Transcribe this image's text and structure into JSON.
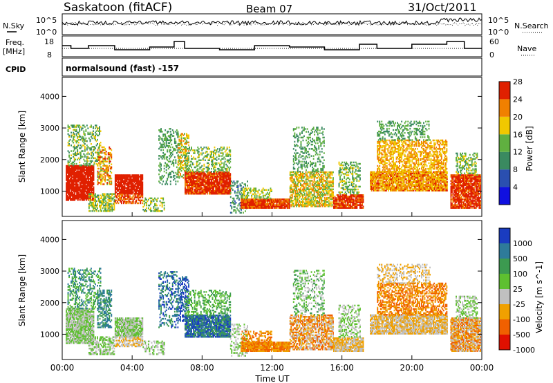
{
  "header": {
    "station": "Saskatoon (fitACF)",
    "beam": "Beam 07",
    "date": "31/Oct/2011"
  },
  "strip_panels": {
    "left_labels": [
      "N.Sky",
      "Freq.",
      "[MHz]",
      "CPID"
    ],
    "right_labels": [
      "N.Search",
      "Nave"
    ],
    "noise_ticks_left": [
      "10^5",
      "10^0"
    ],
    "noise_ticks_right": [
      "10^5",
      "10^0"
    ],
    "freq_ticks": [
      "18",
      "8"
    ],
    "nave_ticks": [
      "60",
      "0"
    ],
    "cpid_text": "normalsound (fast) -157"
  },
  "chart_data": [
    {
      "type": "heatmap",
      "name": "power",
      "ylabel": "Slant Range [km]",
      "yticks": [
        1000,
        2000,
        3000,
        4000
      ],
      "ylim": [
        200,
        4600
      ],
      "xlim_hours": [
        0,
        24
      ],
      "colorbar_label": "Power [dB]",
      "colorbar_ticks": [
        "4",
        "8",
        "12",
        "16",
        "20",
        "24",
        "28"
      ],
      "colorbar_colors": [
        "#1010e0",
        "#2a4fb0",
        "#3a8a60",
        "#60b040",
        "#f0c800",
        "#f08000",
        "#e02000"
      ]
    },
    {
      "type": "heatmap",
      "name": "velocity",
      "ylabel": "Slant Range [km]",
      "yticks": [
        1000,
        2000,
        3000,
        4000
      ],
      "ylim": [
        200,
        4600
      ],
      "xlim_hours": [
        0,
        24
      ],
      "colorbar_label": "Velocity [m s^-1]",
      "colorbar_ticks": [
        "1000",
        "500",
        "100",
        "25",
        "-25",
        "-100",
        "-500",
        "-1000"
      ],
      "colorbar_colors": [
        "#1a3cc0",
        "#2e7b9a",
        "#3c9a50",
        "#5ec030",
        "#c0c0c0",
        "#f0a000",
        "#f06000",
        "#e01000"
      ]
    }
  ],
  "xaxis": {
    "label": "Time UT",
    "ticks": [
      "00:00",
      "04:00",
      "08:00",
      "12:00",
      "16:00",
      "20:00",
      "00:00"
    ]
  }
}
